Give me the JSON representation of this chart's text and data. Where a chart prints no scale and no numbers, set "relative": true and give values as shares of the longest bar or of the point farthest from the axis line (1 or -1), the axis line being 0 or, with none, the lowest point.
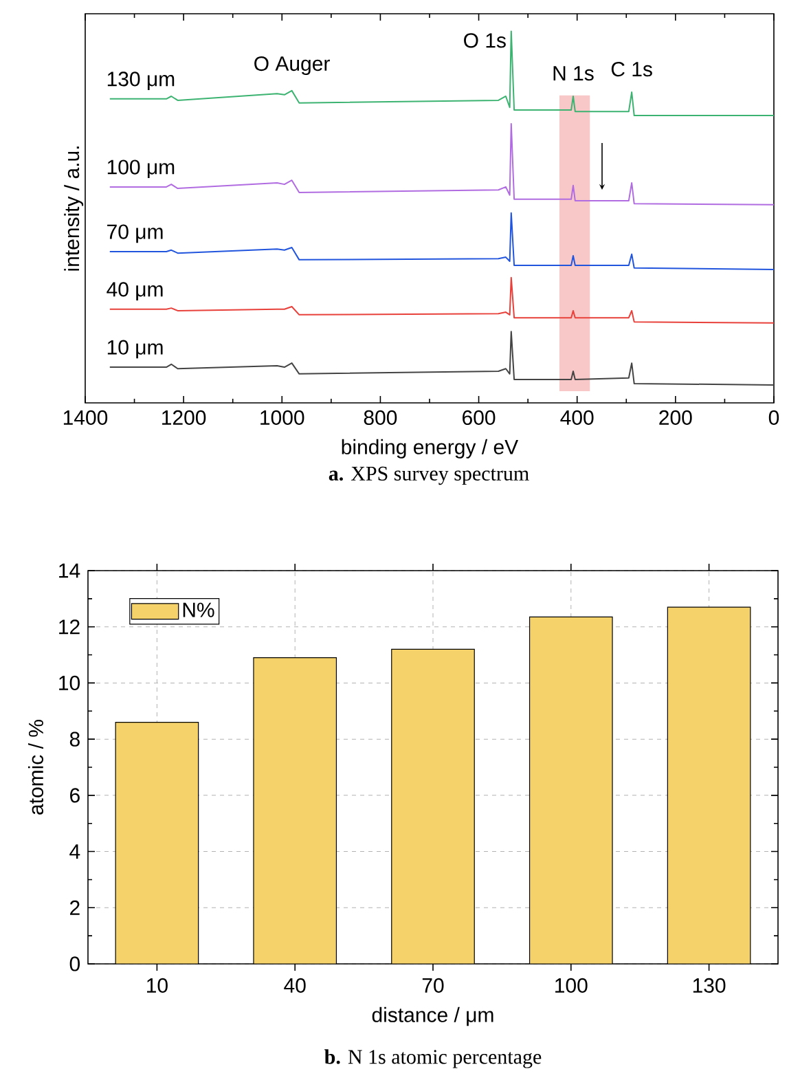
{
  "chart_data": [
    {
      "type": "line",
      "title": "**a.** XPS survey spectrum",
      "xlabel": "binding energy / eV",
      "ylabel": "intensity / a.u.",
      "relative": true,
      "line_style": "solid",
      "x": [
        1350,
        1235,
        1225,
        1212,
        1010,
        995,
        980,
        965,
        560,
        545,
        537,
        534,
        528,
        412,
        408,
        404,
        295,
        289,
        284,
        0
      ],
      "xlim": [
        1400,
        0
      ],
      "xticks": [
        1400,
        1200,
        1000,
        800,
        600,
        400,
        200,
        0
      ],
      "series": [
        {
          "name": "130 μm",
          "color": "#3cb371",
          "values": [
            0.818,
            0.818,
            0.825,
            0.814,
            0.832,
            0.829,
            0.84,
            0.807,
            0.814,
            0.825,
            0.795,
            1.0,
            0.788,
            0.788,
            0.825,
            0.784,
            0.784,
            0.836,
            0.773,
            0.773
          ]
        },
        {
          "name": "100 μm",
          "color": "#b06ce0",
          "values": [
            0.581,
            0.581,
            0.588,
            0.577,
            0.592,
            0.588,
            0.599,
            0.566,
            0.573,
            0.581,
            0.559,
            0.751,
            0.548,
            0.548,
            0.585,
            0.544,
            0.544,
            0.592,
            0.536,
            0.533
          ]
        },
        {
          "name": "70 μm",
          "color": "#2255dd",
          "values": [
            0.407,
            0.407,
            0.411,
            0.403,
            0.414,
            0.411,
            0.418,
            0.385,
            0.388,
            0.392,
            0.381,
            0.511,
            0.37,
            0.37,
            0.396,
            0.37,
            0.37,
            0.4,
            0.363,
            0.359
          ]
        },
        {
          "name": "40 μm",
          "color": "#e8403a",
          "values": [
            0.252,
            0.252,
            0.255,
            0.248,
            0.252,
            0.252,
            0.259,
            0.237,
            0.24,
            0.244,
            0.237,
            0.337,
            0.229,
            0.229,
            0.248,
            0.229,
            0.229,
            0.248,
            0.218,
            0.215
          ]
        },
        {
          "name": "10 μm",
          "color": "#444444",
          "values": [
            0.096,
            0.096,
            0.104,
            0.092,
            0.1,
            0.096,
            0.107,
            0.078,
            0.085,
            0.092,
            0.078,
            0.192,
            0.063,
            0.063,
            0.085,
            0.063,
            0.067,
            0.107,
            0.052,
            0.048
          ]
        }
      ],
      "bands": [
        {
          "axis": "x",
          "from": 436,
          "to": 374,
          "color": "#f8c8c8"
        }
      ],
      "annotations": [
        {
          "text": "O 1s",
          "x": 534,
          "y": 1.0
        },
        {
          "text": "N 1s",
          "x": 408,
          "y": 0.825
        },
        {
          "text": "C 1s",
          "x": 289,
          "y": 0.836
        },
        {
          "text": "O Auger",
          "x": 980,
          "y": 0.84
        }
      ]
    },
    {
      "type": "bar",
      "title": "**b.** N 1s atomic percentage",
      "xlabel": "distance / μm",
      "ylabel": "atomic / %",
      "categories": [
        "10",
        "40",
        "70",
        "100",
        "130"
      ],
      "series": [
        {
          "name": "N%",
          "color": "#f5d36a",
          "values": [
            8.6,
            10.9,
            11.2,
            12.35,
            12.7
          ]
        }
      ],
      "ylim": [
        0,
        14
      ],
      "yticks": [
        0,
        2,
        4,
        6,
        8,
        10,
        12,
        14
      ],
      "grid": true,
      "legend": "top left"
    }
  ]
}
